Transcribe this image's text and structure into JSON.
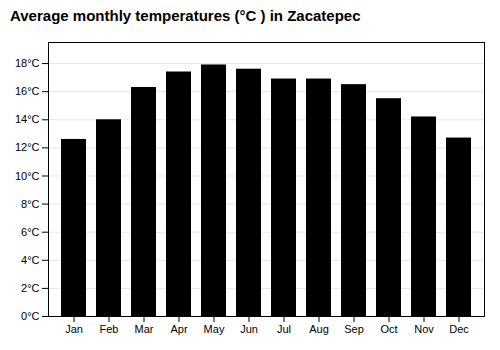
{
  "chart_data": {
    "type": "bar",
    "title": "Average monthly temperatures (°C ) in Zacatepec",
    "categories": [
      "Jan",
      "Feb",
      "Mar",
      "Apr",
      "May",
      "Jun",
      "Jul",
      "Aug",
      "Sep",
      "Oct",
      "Nov",
      "Dec"
    ],
    "values": [
      12.6,
      14.0,
      16.3,
      17.4,
      17.9,
      17.6,
      16.9,
      16.9,
      16.5,
      15.5,
      14.2,
      12.7
    ],
    "ylim": [
      0,
      19.5
    ],
    "yticks": [
      {
        "value": 0,
        "label": "0°C"
      },
      {
        "value": 2,
        "label": "2°C"
      },
      {
        "value": 4,
        "label": "4°C"
      },
      {
        "value": 6,
        "label": "6°C"
      },
      {
        "value": 8,
        "label": "8°C"
      },
      {
        "value": 10,
        "label": "10°C"
      },
      {
        "value": 12,
        "label": "12°C"
      },
      {
        "value": 14,
        "label": "14°C"
      },
      {
        "value": 16,
        "label": "16°C"
      },
      {
        "value": 18,
        "label": "18°C"
      }
    ],
    "grid": true
  }
}
